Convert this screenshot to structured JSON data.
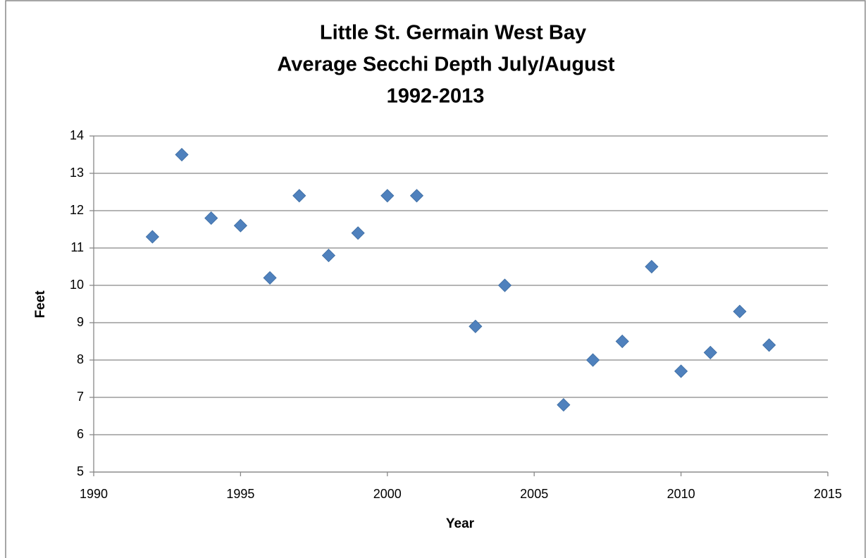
{
  "chart_data": {
    "type": "scatter",
    "title": [
      "Little St. Germain West Bay",
      "Average Secchi Depth July/August",
      "1992-2013"
    ],
    "x_label": "Year",
    "y_label": "Feet",
    "x": [
      1992,
      1993,
      1994,
      1995,
      1996,
      1997,
      1998,
      1999,
      2000,
      2001,
      2003,
      2004,
      2006,
      2007,
      2008,
      2009,
      2010,
      2011,
      2012,
      2013
    ],
    "series": [
      {
        "color": "#4f81bd",
        "values": [
          11.3,
          13.5,
          11.8,
          11.6,
          10.2,
          12.4,
          10.8,
          11.4,
          12.4,
          12.4,
          8.9,
          10.0,
          6.8,
          8.0,
          8.5,
          10.5,
          7.7,
          8.2,
          9.3,
          8.4
        ]
      }
    ],
    "xlim": [
      1990,
      2015
    ],
    "xticks": [
      1990,
      1995,
      2000,
      2005,
      2010,
      2015
    ],
    "ylim": [
      5,
      14
    ],
    "yticks": [
      5,
      6,
      7,
      8,
      9,
      10,
      11,
      12,
      13,
      14
    ],
    "grid": true
  }
}
